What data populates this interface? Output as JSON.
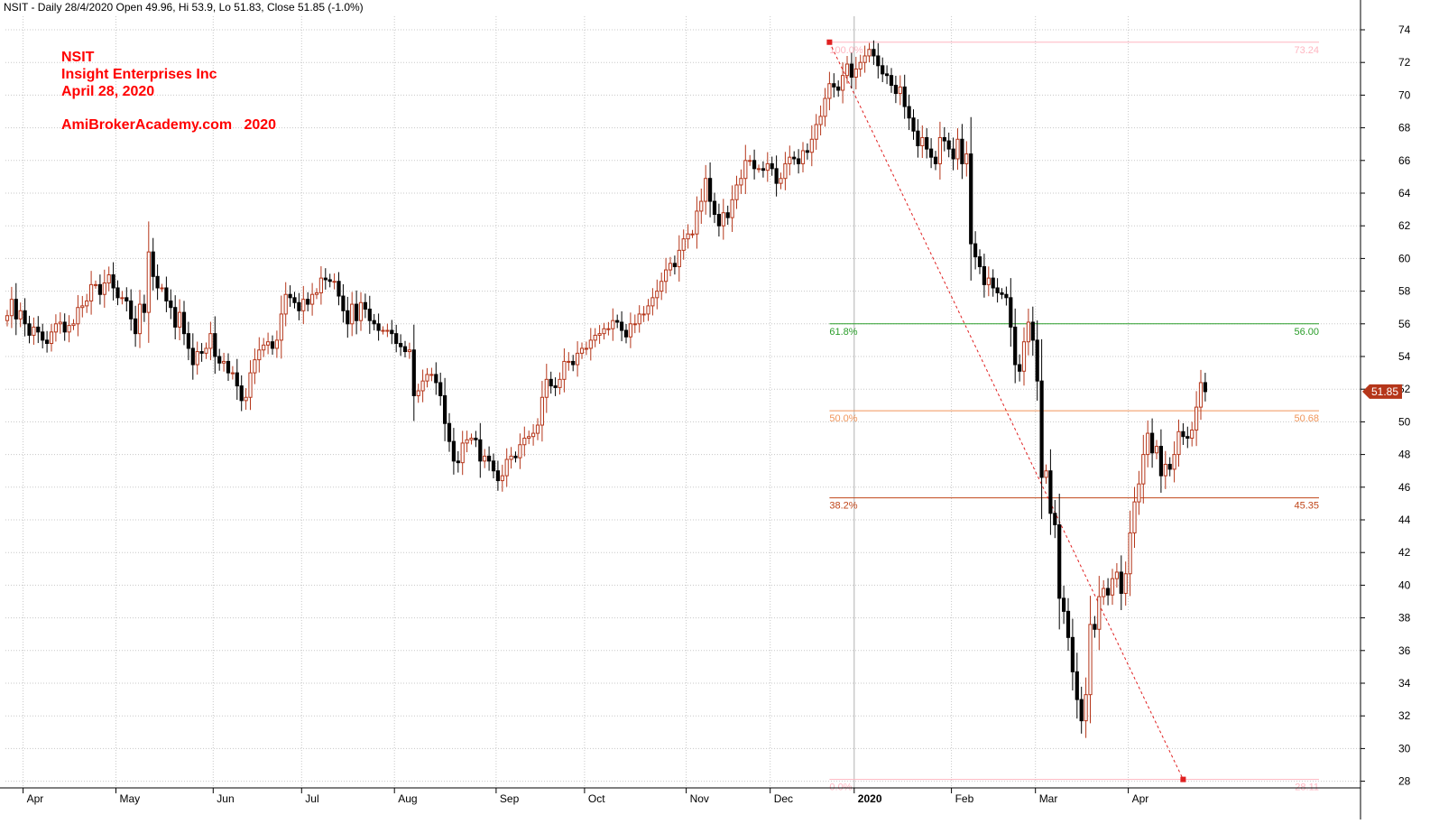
{
  "header": {
    "title_line": "NSIT - Daily 28/4/2020 Open 49.96, Hi 53.9, Lo 51.83, Close 51.85 (-1.0%)"
  },
  "annotations": {
    "ticker": "NSIT",
    "company": "Insight Enterprises Inc",
    "date": "April 28, 2020",
    "site": "AmiBrokerAcademy.com   2020"
  },
  "colors": {
    "up_candle": "#b5361a",
    "down_candle": "#000000",
    "grid": "#c8c8c8",
    "annotation": "#ff0000",
    "price_badge_bg": "#b5361a",
    "fib_100": "#ffb6c1",
    "fib_618": "#2a9d2a",
    "fib_50": "#f0955a",
    "fib_382": "#c0461a",
    "fib_0": "#ffb6c1",
    "trend_line": "#e02020"
  },
  "chart_data": {
    "type": "candlestick",
    "title": "NSIT - Daily 28/4/2020 Open 49.96, Hi 53.9, Lo 51.83, Close 51.85 (-1.0%)",
    "xlabel": "",
    "ylabel": "",
    "ylim": [
      27,
      75
    ],
    "y_ticks": [
      28,
      30,
      32,
      34,
      36,
      38,
      40,
      42,
      44,
      46,
      48,
      50,
      52,
      54,
      56,
      58,
      60,
      62,
      64,
      66,
      68,
      70,
      72,
      74
    ],
    "x_tick_labels": [
      {
        "label": "Apr",
        "bold": false
      },
      {
        "label": "May",
        "bold": false
      },
      {
        "label": "Jun",
        "bold": false
      },
      {
        "label": "Jul",
        "bold": false
      },
      {
        "label": "Aug",
        "bold": false
      },
      {
        "label": "Sep",
        "bold": false
      },
      {
        "label": "Oct",
        "bold": false
      },
      {
        "label": "Nov",
        "bold": false
      },
      {
        "label": "Dec",
        "bold": false
      },
      {
        "label": "2020",
        "bold": true
      },
      {
        "label": "Feb",
        "bold": false
      },
      {
        "label": "Mar",
        "bold": false
      },
      {
        "label": "Apr",
        "bold": false
      }
    ],
    "month_start_index": [
      4,
      25,
      47,
      67,
      88,
      111,
      131,
      154,
      173,
      192,
      214,
      233,
      254
    ],
    "grid": true,
    "last_price": {
      "label": "51.85",
      "value": 51.85
    },
    "fibonacci": {
      "start_index": 186,
      "end_index": 266,
      "high": 73.24,
      "low": 28.11,
      "levels": [
        {
          "pct_label": "100.0%",
          "value_label": "73.24",
          "value": 73.24,
          "color_key": "fib_100"
        },
        {
          "pct_label": "61.8%",
          "value_label": "56.00",
          "value": 56.0,
          "color_key": "fib_618"
        },
        {
          "pct_label": "50.0%",
          "value_label": "50.68",
          "value": 50.68,
          "color_key": "fib_50"
        },
        {
          "pct_label": "38.2%",
          "value_label": "45.35",
          "value": 45.35,
          "color_key": "fib_382"
        },
        {
          "pct_label": "0.0%",
          "value_label": "28.11",
          "value": 28.11,
          "color_key": "fib_0"
        }
      ]
    },
    "close_series": [
      56.5,
      57.5,
      56.3,
      56.8,
      56.0,
      55.3,
      55.8,
      55.5,
      55.0,
      54.8,
      55.5,
      56.0,
      56.1,
      55.5,
      55.9,
      56.0,
      57.0,
      57.1,
      57.4,
      58.4,
      58.4,
      57.8,
      58.5,
      59.0,
      58.2,
      57.6,
      57.6,
      57.4,
      56.3,
      55.4,
      57.2,
      56.7,
      60.4,
      58.9,
      58.2,
      58.2,
      57.4,
      57.0,
      55.8,
      56.7,
      55.4,
      54.5,
      53.5,
      54.3,
      54.2,
      54.5,
      55.4,
      54.0,
      53.6,
      53.7,
      53.0,
      53.0,
      52.2,
      51.3,
      51.5,
      53.0,
      53.8,
      54.4,
      54.7,
      54.9,
      54.5,
      55.0,
      56.6,
      57.8,
      57.6,
      57.3,
      56.8,
      57.5,
      57.2,
      57.8,
      57.9,
      58.8,
      58.7,
      58.6,
      58.6,
      57.7,
      56.8,
      56.0,
      57.2,
      56.2,
      57.3,
      56.9,
      56.2,
      56.0,
      55.6,
      55.6,
      55.6,
      55.4,
      54.8,
      54.6,
      54.3,
      54.4,
      51.6,
      51.9,
      52.5,
      52.9,
      52.9,
      52.4,
      51.6,
      49.9,
      48.8,
      47.6,
      47.5,
      48.7,
      48.9,
      49.0,
      48.9,
      47.6,
      47.9,
      47.6,
      47.0,
      46.4,
      46.7,
      47.7,
      47.9,
      47.8,
      48.6,
      49.0,
      49.1,
      49.3,
      49.8,
      51.5,
      52.6,
      52.2,
      52.1,
      52.6,
      53.7,
      53.7,
      53.5,
      54.2,
      54.5,
      54.5,
      55.0,
      55.3,
      55.4,
      55.7,
      55.7,
      56.2,
      56.1,
      55.6,
      55.2,
      56.0,
      56.0,
      56.6,
      56.6,
      57.1,
      57.6,
      58.0,
      58.6,
      59.3,
      59.7,
      59.5,
      60.5,
      61.2,
      61.5,
      61.5,
      62.9,
      63.5,
      64.9,
      63.5,
      62.7,
      62.0,
      62.8,
      62.5,
      63.6,
      64.5,
      64.9,
      66.0,
      66.0,
      65.5,
      65.5,
      65.4,
      65.8,
      65.5,
      64.6,
      64.9,
      65.8,
      66.2,
      66.1,
      65.8,
      66.6,
      66.5,
      67.3,
      68.2,
      68.7,
      69.8,
      70.7,
      70.5,
      70.3,
      71.2,
      71.9,
      71.1,
      71.6,
      72.0,
      72.4,
      72.8,
      72.4,
      71.8,
      71.3,
      71.2,
      70.6,
      70.1,
      70.5,
      69.3,
      68.6,
      67.8,
      66.9,
      67.4,
      66.7,
      66.2,
      65.8,
      67.4,
      67.2,
      66.7,
      66.1,
      67.3,
      65.8,
      66.4,
      60.9,
      60.1,
      59.5,
      58.4,
      58.8,
      58.2,
      57.9,
      57.8,
      57.6,
      55.8,
      53.5,
      53.1,
      54.9,
      56.1,
      55.0,
      52.5,
      46.6,
      47.0,
      44.4,
      43.7,
      39.2,
      38.4,
      36.8,
      34.7,
      33.0,
      31.7,
      33.3,
      37.6,
      37.3,
      39.3,
      39.8,
      39.4,
      40.4,
      40.8,
      39.5,
      40.7,
      43.2,
      45.1,
      46.2,
      48.0,
      49.3,
      48.1,
      48.5,
      46.7,
      47.4,
      47.1,
      48.0,
      49.4,
      49.1,
      49.0,
      49.5,
      50.9,
      52.4,
      51.85
    ]
  }
}
